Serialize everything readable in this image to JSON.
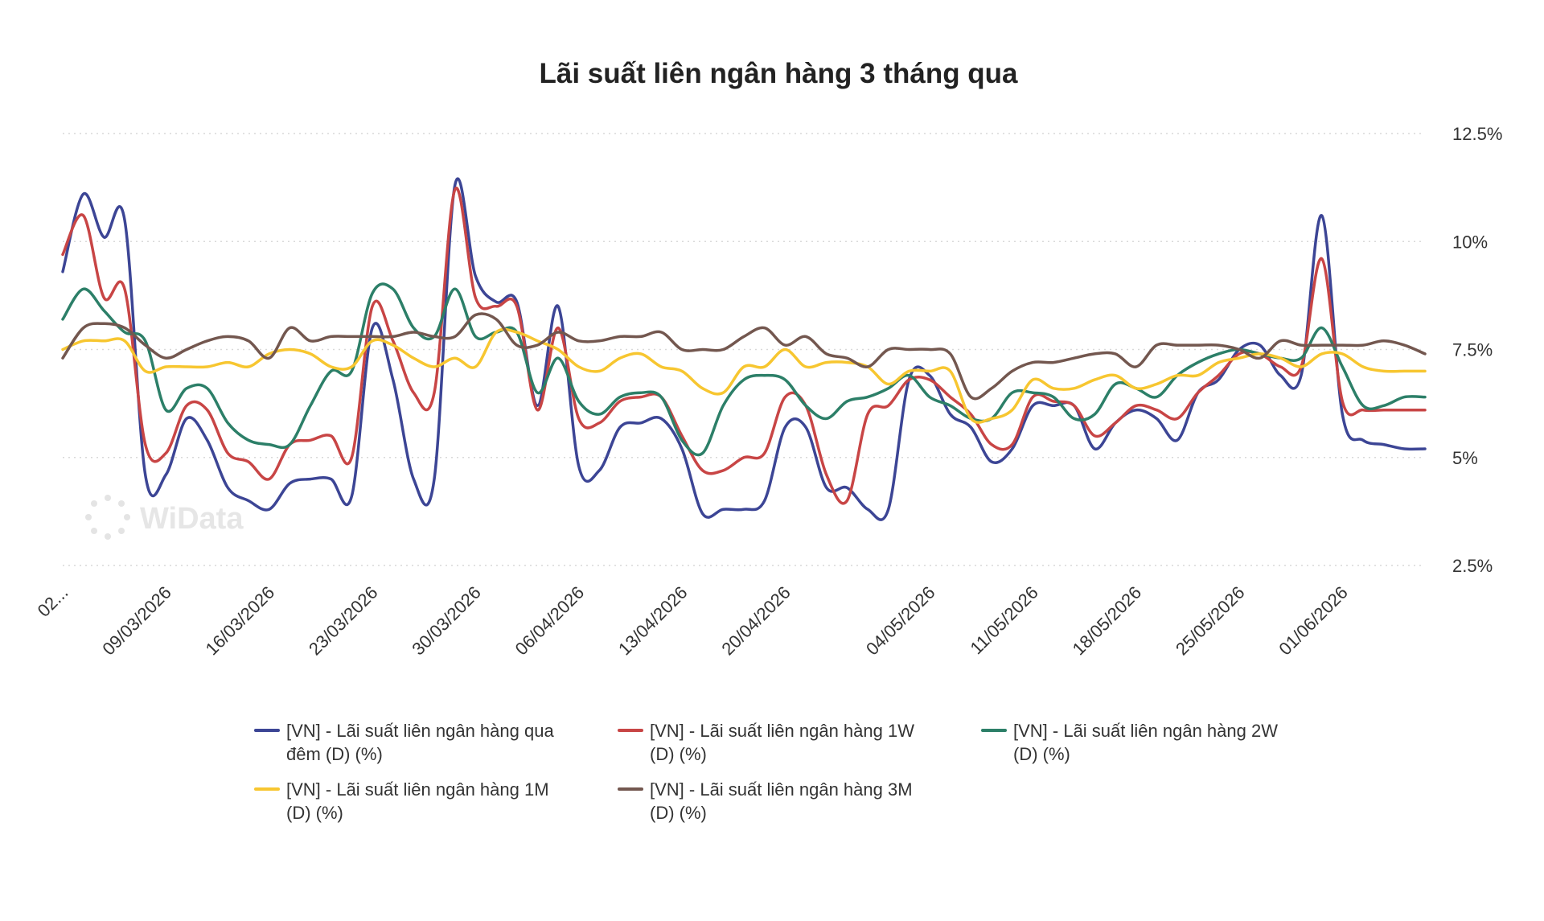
{
  "chart_data": {
    "type": "line",
    "title": "Lãi suất liên ngân hàng 3 tháng qua",
    "y_axis_position": "right",
    "ylim": [
      2.5,
      12.5
    ],
    "yticks": [
      {
        "value": 12.5,
        "label": "12.5%"
      },
      {
        "value": 10,
        "label": "10%"
      },
      {
        "value": 7.5,
        "label": "7.5%"
      },
      {
        "value": 5,
        "label": "5%"
      },
      {
        "value": 2.5,
        "label": "2.5%"
      }
    ],
    "grid": "horizontal-dotted",
    "legend_position": "bottom",
    "xtick_labels": [
      "02...",
      "09/03/2026",
      "16/03/2026",
      "23/03/2026",
      "30/03/2026",
      "06/04/2026",
      "13/04/2026",
      "20/04/2026",
      "04/05/2026",
      "11/05/2026",
      "18/05/2026",
      "25/05/2026",
      "01/06/2026"
    ],
    "xtick_index": [
      0,
      5,
      10,
      15,
      20,
      25,
      30,
      35,
      42,
      47,
      52,
      57,
      62
    ],
    "x": [
      "02/03/2026",
      "03/03/2026",
      "04/03/2026",
      "05/03/2026",
      "06/03/2026",
      "09/03/2026",
      "10/03/2026",
      "11/03/2026",
      "12/03/2026",
      "13/03/2026",
      "16/03/2026",
      "17/03/2026",
      "18/03/2026",
      "19/03/2026",
      "20/03/2026",
      "23/03/2026",
      "24/03/2026",
      "25/03/2026",
      "26/03/2026",
      "27/03/2026",
      "30/03/2026",
      "31/03/2026",
      "01/04/2026",
      "02/04/2026",
      "03/04/2026",
      "06/04/2026",
      "07/04/2026",
      "08/04/2026",
      "09/04/2026",
      "10/04/2026",
      "13/04/2026",
      "14/04/2026",
      "15/04/2026",
      "16/04/2026",
      "17/04/2026",
      "20/04/2026",
      "21/04/2026",
      "22/04/2026",
      "23/04/2026",
      "24/04/2026",
      "28/04/2026",
      "29/04/2026",
      "04/05/2026",
      "05/05/2026",
      "06/05/2026",
      "07/05/2026",
      "08/05/2026",
      "11/05/2026",
      "12/05/2026",
      "13/05/2026",
      "14/05/2026",
      "15/05/2026",
      "18/05/2026",
      "19/05/2026",
      "20/05/2026",
      "21/05/2026",
      "22/05/2026",
      "25/05/2026",
      "26/05/2026",
      "27/05/2026",
      "28/05/2026",
      "29/05/2026",
      "01/06/2026",
      "02/06/2026",
      "03/06/2026",
      "04/06/2026",
      "05/06/2026"
    ],
    "series": [
      {
        "name": "[VN] - Lãi suất liên ngân hàng qua đêm (D) (%)",
        "legend_lines": [
          "[VN] - Lãi suất liên ngân hàng qua",
          "đêm (D) (%)"
        ],
        "color": "#3c4595",
        "values": [
          9.3,
          11.1,
          10.1,
          10.5,
          4.6,
          4.6,
          5.9,
          5.4,
          4.3,
          4.0,
          3.8,
          4.4,
          4.5,
          4.5,
          4.1,
          8.0,
          6.8,
          4.5,
          4.5,
          11.3,
          9.2,
          8.6,
          8.6,
          6.2,
          8.5,
          4.8,
          4.7,
          5.7,
          5.8,
          5.9,
          5.2,
          3.7,
          3.8,
          3.8,
          4.0,
          5.7,
          5.7,
          4.3,
          4.3,
          3.8,
          3.8,
          6.8,
          6.9,
          6.0,
          5.7,
          4.9,
          5.2,
          6.2,
          6.2,
          6.2,
          5.2,
          5.8,
          6.1,
          5.9,
          5.4,
          6.5,
          6.8,
          7.5,
          7.6,
          6.9,
          6.9,
          10.6,
          6.0,
          5.4,
          5.3,
          5.2,
          5.2
        ]
      },
      {
        "name": "[VN] - Lãi suất liên ngân hàng 1W (D) (%)",
        "legend_lines": [
          "[VN] - Lãi suất liên ngân hàng 1W",
          "(D) (%)"
        ],
        "color": "#c84545",
        "values": [
          9.7,
          10.6,
          8.7,
          8.9,
          5.3,
          5.1,
          6.2,
          6.1,
          5.1,
          4.9,
          4.5,
          5.3,
          5.4,
          5.5,
          5.0,
          8.5,
          7.7,
          6.5,
          6.5,
          11.2,
          8.7,
          8.5,
          8.5,
          6.1,
          8.0,
          5.9,
          5.8,
          6.3,
          6.4,
          6.4,
          5.5,
          4.7,
          4.7,
          5.0,
          5.1,
          6.4,
          6.2,
          4.6,
          4.0,
          6.0,
          6.2,
          6.8,
          6.8,
          6.4,
          6.0,
          5.3,
          5.3,
          6.4,
          6.3,
          6.2,
          5.5,
          5.8,
          6.2,
          6.1,
          5.9,
          6.5,
          6.9,
          7.4,
          7.4,
          7.1,
          7.1,
          9.6,
          6.3,
          6.1,
          6.1,
          6.1,
          6.1
        ]
      },
      {
        "name": "[VN] - Lãi suất liên ngân hàng 2W (D) (%)",
        "legend_lines": [
          "[VN] - Lãi suất liên ngân hàng 2W",
          "(D) (%)"
        ],
        "color": "#2c7f68",
        "values": [
          8.2,
          8.9,
          8.4,
          7.9,
          7.7,
          6.1,
          6.6,
          6.6,
          5.8,
          5.4,
          5.3,
          5.3,
          6.2,
          7.0,
          7.0,
          8.8,
          8.9,
          8.0,
          7.8,
          8.9,
          7.8,
          7.9,
          7.9,
          6.5,
          7.3,
          6.3,
          6.0,
          6.4,
          6.5,
          6.4,
          5.4,
          5.1,
          6.2,
          6.8,
          6.9,
          6.8,
          6.2,
          5.9,
          6.3,
          6.4,
          6.6,
          6.9,
          6.4,
          6.2,
          5.9,
          5.9,
          6.5,
          6.5,
          6.4,
          5.9,
          6.0,
          6.7,
          6.6,
          6.4,
          6.9,
          7.2,
          7.4,
          7.5,
          7.4,
          7.3,
          7.3,
          8.0,
          7.1,
          6.2,
          6.2,
          6.4,
          6.4
        ]
      },
      {
        "name": "[VN] - Lãi suất liên ngân hàng 1M (D) (%)",
        "legend_lines": [
          "[VN] - Lãi suất liên ngân hàng 1M",
          "(D) (%)"
        ],
        "color": "#f7c630",
        "values": [
          7.5,
          7.7,
          7.7,
          7.7,
          7.0,
          7.1,
          7.1,
          7.1,
          7.2,
          7.1,
          7.4,
          7.5,
          7.4,
          7.1,
          7.1,
          7.7,
          7.6,
          7.3,
          7.1,
          7.3,
          7.1,
          7.9,
          7.9,
          7.7,
          7.5,
          7.1,
          7.0,
          7.3,
          7.4,
          7.1,
          7.0,
          6.6,
          6.5,
          7.1,
          7.1,
          7.5,
          7.1,
          7.2,
          7.2,
          7.1,
          6.7,
          7.0,
          7.0,
          7.0,
          5.9,
          5.9,
          6.1,
          6.8,
          6.6,
          6.6,
          6.8,
          6.9,
          6.6,
          6.7,
          6.9,
          6.9,
          7.2,
          7.3,
          7.4,
          7.3,
          7.1,
          7.4,
          7.4,
          7.1,
          7.0,
          7.0,
          7.0
        ]
      },
      {
        "name": "[VN] - Lãi suất liên ngân hàng 3M (D) (%)",
        "legend_lines": [
          "[VN] - Lãi suất liên ngân hàng 3M",
          "(D) (%)"
        ],
        "color": "#73574f",
        "values": [
          7.3,
          8.0,
          8.1,
          8.0,
          7.6,
          7.3,
          7.5,
          7.7,
          7.8,
          7.7,
          7.3,
          8.0,
          7.7,
          7.8,
          7.8,
          7.8,
          7.8,
          7.9,
          7.8,
          7.8,
          8.3,
          8.2,
          7.6,
          7.6,
          7.9,
          7.7,
          7.7,
          7.8,
          7.8,
          7.9,
          7.5,
          7.5,
          7.5,
          7.8,
          8.0,
          7.6,
          7.8,
          7.4,
          7.3,
          7.1,
          7.5,
          7.5,
          7.5,
          7.4,
          6.4,
          6.6,
          7.0,
          7.2,
          7.2,
          7.3,
          7.4,
          7.4,
          7.1,
          7.6,
          7.6,
          7.6,
          7.6,
          7.5,
          7.3,
          7.7,
          7.6,
          7.6,
          7.6,
          7.6,
          7.7,
          7.6,
          7.4
        ]
      }
    ],
    "watermark": "WiData"
  }
}
